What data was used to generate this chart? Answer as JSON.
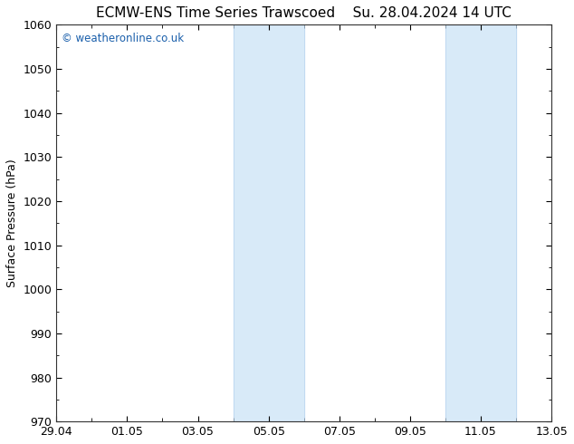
{
  "title_left": "ECMW-ENS Time Series Trawscoed",
  "title_right": "Su. 28.04.2024 14 UTC",
  "ylabel": "Surface Pressure (hPa)",
  "ylim": [
    970,
    1060
  ],
  "yticks": [
    970,
    980,
    990,
    1000,
    1010,
    1020,
    1030,
    1040,
    1050,
    1060
  ],
  "xtick_labels": [
    "29.04",
    "01.05",
    "03.05",
    "05.05",
    "07.05",
    "09.05",
    "11.05",
    "13.05"
  ],
  "xtick_positions": [
    0,
    2,
    4,
    6,
    8,
    10,
    12,
    14
  ],
  "xlim": [
    0,
    14
  ],
  "background_color": "#ffffff",
  "plot_bg_color": "#ffffff",
  "shade_bands": [
    {
      "x_start": 5.0,
      "x_end": 7.0
    },
    {
      "x_start": 11.0,
      "x_end": 13.0
    }
  ],
  "shade_color": "#d8eaf8",
  "shade_edge_color": "#b8d4ee",
  "watermark_text": "© weatheronline.co.uk",
  "watermark_color": "#1a5fab",
  "title_fontsize": 11,
  "label_fontsize": 9,
  "tick_fontsize": 9
}
